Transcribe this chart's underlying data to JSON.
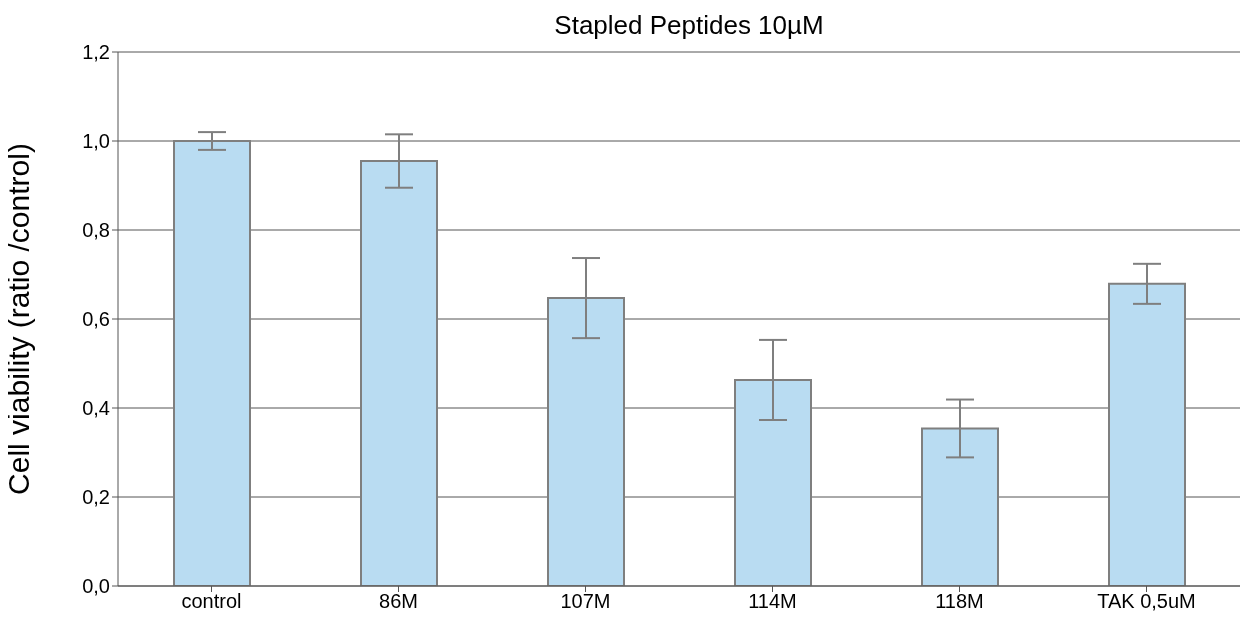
{
  "chart_data": {
    "type": "bar",
    "title": "Stapled Peptides 10µM",
    "ylabel": "Cell viability (ratio /control)",
    "categories": [
      "control",
      "86M",
      "107M",
      "114M",
      "118M",
      "TAK 0,5uM"
    ],
    "values": [
      1.0,
      0.955,
      0.647,
      0.463,
      0.354,
      0.679
    ],
    "errors": [
      0.02,
      0.06,
      0.09,
      0.09,
      0.065,
      0.045
    ],
    "color": "#b9dcf2",
    "ylim": [
      0,
      1.2
    ],
    "yticks": [
      {
        "value": 0,
        "label": "0,0"
      },
      {
        "value": 0.2,
        "label": "0,2"
      },
      {
        "value": 0.4,
        "label": "0,4"
      },
      {
        "value": 0.6,
        "label": "0,6"
      },
      {
        "value": 0.8,
        "label": "0,8"
      },
      {
        "value": 1.0,
        "label": "1,0"
      },
      {
        "value": 1.2,
        "label": "1,2"
      }
    ],
    "grid": "y",
    "legend": false
  }
}
